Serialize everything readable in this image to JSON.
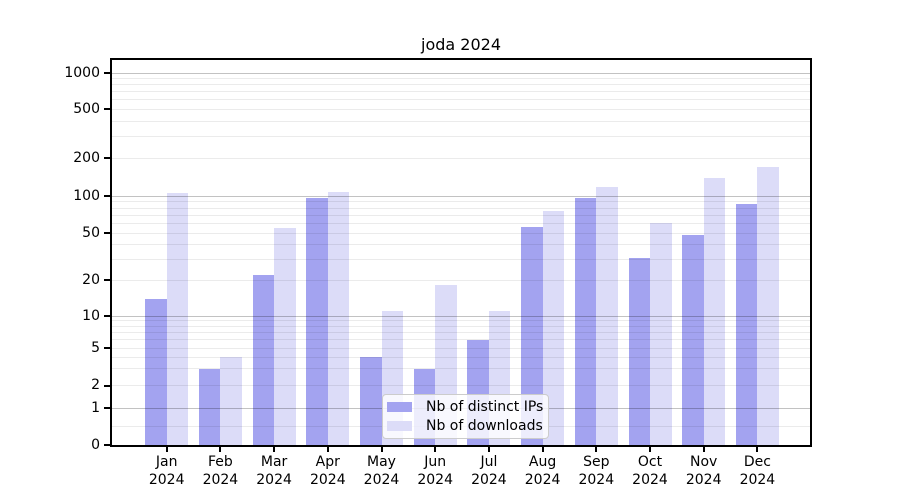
{
  "chart_data": {
    "type": "bar",
    "title": "joda 2024",
    "categories": [
      "Jan 2024",
      "Feb 2024",
      "Mar 2024",
      "Apr 2024",
      "May 2024",
      "Jun 2024",
      "Jul 2024",
      "Aug 2024",
      "Sep 2024",
      "Oct 2024",
      "Nov 2024",
      "Dec 2024"
    ],
    "series": [
      {
        "name": "Nb of distinct IPs",
        "color": "#a3a3f0",
        "values": [
          14,
          3,
          22,
          96,
          4,
          3,
          6,
          56,
          96,
          31,
          48,
          86
        ]
      },
      {
        "name": "Nb of downloads",
        "color": "#dcdcf8",
        "values": [
          106,
          4,
          55,
          108,
          11,
          18,
          11,
          75,
          119,
          61,
          138,
          171
        ]
      }
    ],
    "xlabel": "",
    "ylabel": "",
    "yscale": "symlog",
    "y_ticks": [
      0,
      1,
      2,
      5,
      10,
      20,
      50,
      100,
      200,
      500,
      1000
    ],
    "ylim": [
      0,
      1300
    ],
    "grid": "on",
    "legend_position": "lower center"
  },
  "colors": {
    "background": "#ffffff",
    "axis": "#000000",
    "grid_major": "rgba(0,0,0,0.24)",
    "grid_minor": "rgba(0,0,0,0.08)",
    "legend_border": "#cccccc",
    "legend_background": "rgba(255,255,255,0.8)"
  }
}
